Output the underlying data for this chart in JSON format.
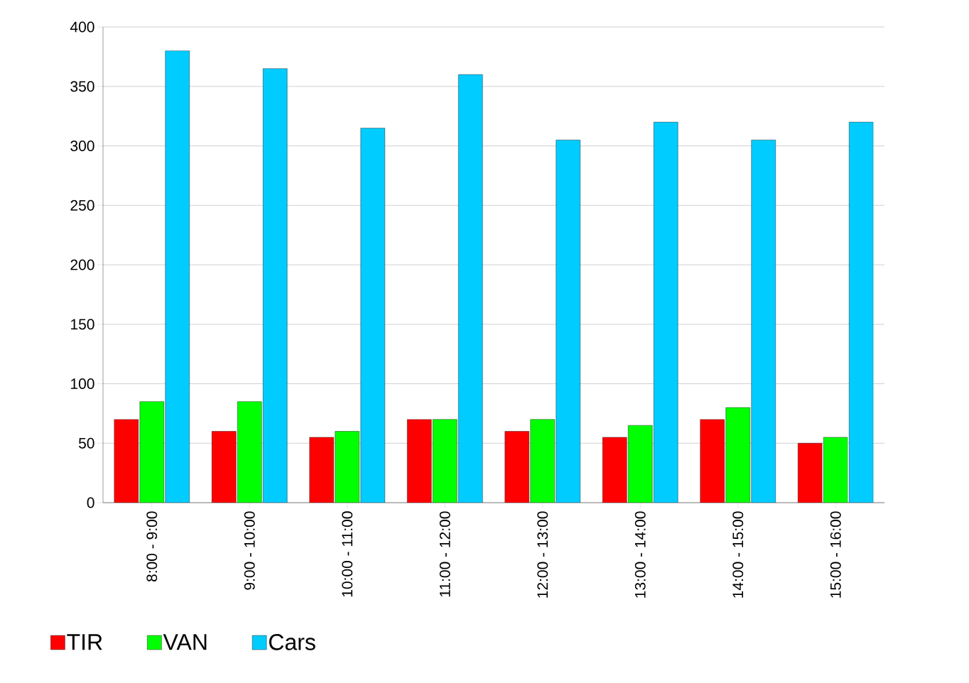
{
  "chart_data": {
    "type": "bar",
    "categories": [
      "8:00 - 9:00",
      "9:00 - 10:00",
      "10:00 - 11:00",
      "11:00 - 12:00",
      "12:00 - 13:00",
      "13:00 - 14:00",
      "14:00 - 15:00",
      "15:00 - 16:00"
    ],
    "series": [
      {
        "name": "TIR",
        "color": "#ff0000",
        "values": [
          70,
          60,
          55,
          70,
          60,
          55,
          70,
          50
        ]
      },
      {
        "name": "VAN",
        "color": "#00ff00",
        "values": [
          85,
          85,
          60,
          70,
          70,
          65,
          80,
          55
        ]
      },
      {
        "name": "Cars",
        "color": "#00ccff",
        "values": [
          380,
          365,
          315,
          360,
          305,
          320,
          305,
          320
        ]
      }
    ],
    "ylim": [
      0,
      400
    ],
    "yticks": [
      0,
      50,
      100,
      150,
      200,
      250,
      300,
      350,
      400
    ],
    "grid": "y",
    "legend": "bottom left"
  }
}
